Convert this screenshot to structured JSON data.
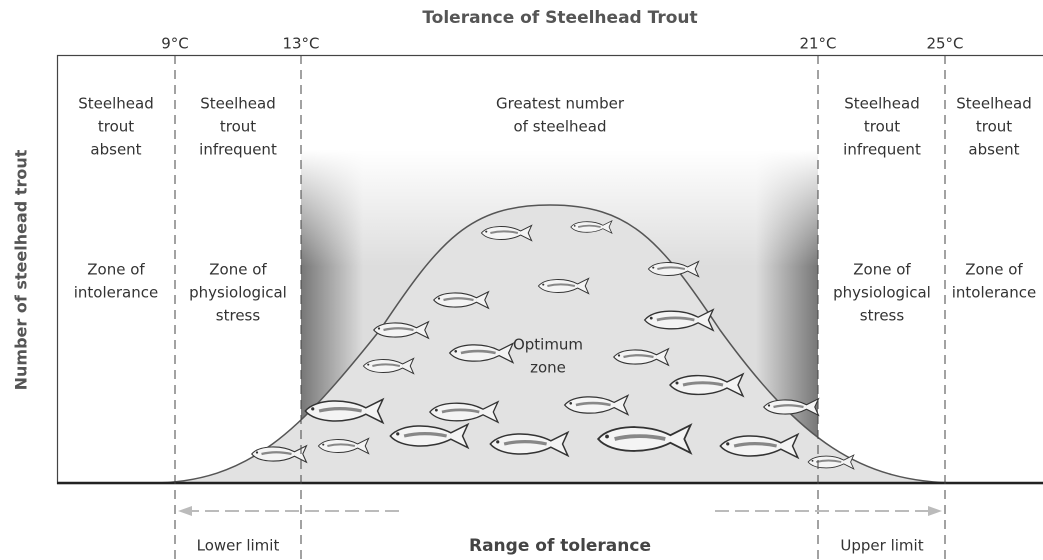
{
  "title": "Tolerance of Steelhead Trout",
  "y_axis_label": "Number of steelhead trout",
  "boundaries": [
    "9°C",
    "13°C",
    "21°C",
    "25°C"
  ],
  "zones": [
    {
      "top": [
        "Steelhead",
        "trout",
        "absent"
      ],
      "zone": [
        "Zone of",
        "intolerance"
      ]
    },
    {
      "top": [
        "Steelhead",
        "trout",
        "infrequent"
      ],
      "zone": [
        "Zone of",
        "physiological",
        "stress"
      ]
    },
    {
      "top": [
        "Greatest number",
        "of steelhead"
      ],
      "zone": [
        "Optimum",
        "zone"
      ]
    },
    {
      "top": [
        "Steelhead",
        "trout",
        "infrequent"
      ],
      "zone": [
        "Zone of",
        "physiological",
        "stress"
      ]
    },
    {
      "top": [
        "Steelhead",
        "trout",
        "absent"
      ],
      "zone": [
        "Zone of",
        "intolerance"
      ]
    }
  ],
  "bottom_labels": {
    "lower": "Lower limit",
    "range": "Range of tolerance",
    "upper": "Upper limit"
  }
}
